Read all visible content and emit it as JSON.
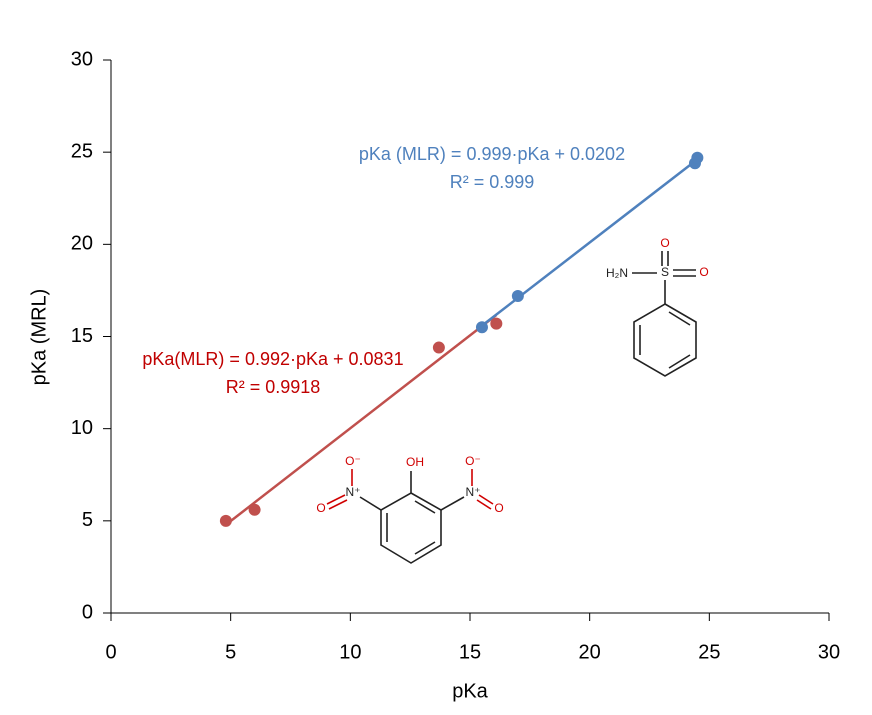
{
  "chart_data": {
    "type": "scatter",
    "xlabel": "pKa",
    "ylabel": "pKa (MRL)",
    "xlim": [
      0,
      30
    ],
    "ylim": [
      0,
      30
    ],
    "xticks": [
      0,
      5,
      10,
      15,
      20,
      25,
      30
    ],
    "yticks": [
      0,
      5,
      10,
      15,
      20,
      25,
      30
    ],
    "series": [
      {
        "color": "#c0504d",
        "x": [
          4.8,
          6.0,
          13.7,
          16.1
        ],
        "y": [
          5.0,
          5.6,
          14.4,
          15.7
        ]
      },
      {
        "color": "#4f81bd",
        "x": [
          15.5,
          17.0,
          24.4,
          24.5
        ],
        "y": [
          15.5,
          17.2,
          24.4,
          24.7
        ]
      }
    ],
    "annotations": [
      {
        "text": "pKa(MLR) = 0.992·pKa + 0.0831",
        "color": "#c00000"
      },
      {
        "text": "R² = 0.9918",
        "color": "#c00000"
      },
      {
        "text": "pKa (MLR) = 0.999·pKa + 0.0202",
        "color": "#4f81bd"
      },
      {
        "text": "R² = 0.999",
        "color": "#4f81bd"
      }
    ],
    "structures": [
      {
        "labels": [
          "O",
          "H₂N",
          "S",
          "O"
        ]
      },
      {
        "labels": [
          "O⁻",
          "OH",
          "O⁻",
          "N⁺",
          "N⁺",
          "O",
          "O"
        ]
      }
    ]
  }
}
